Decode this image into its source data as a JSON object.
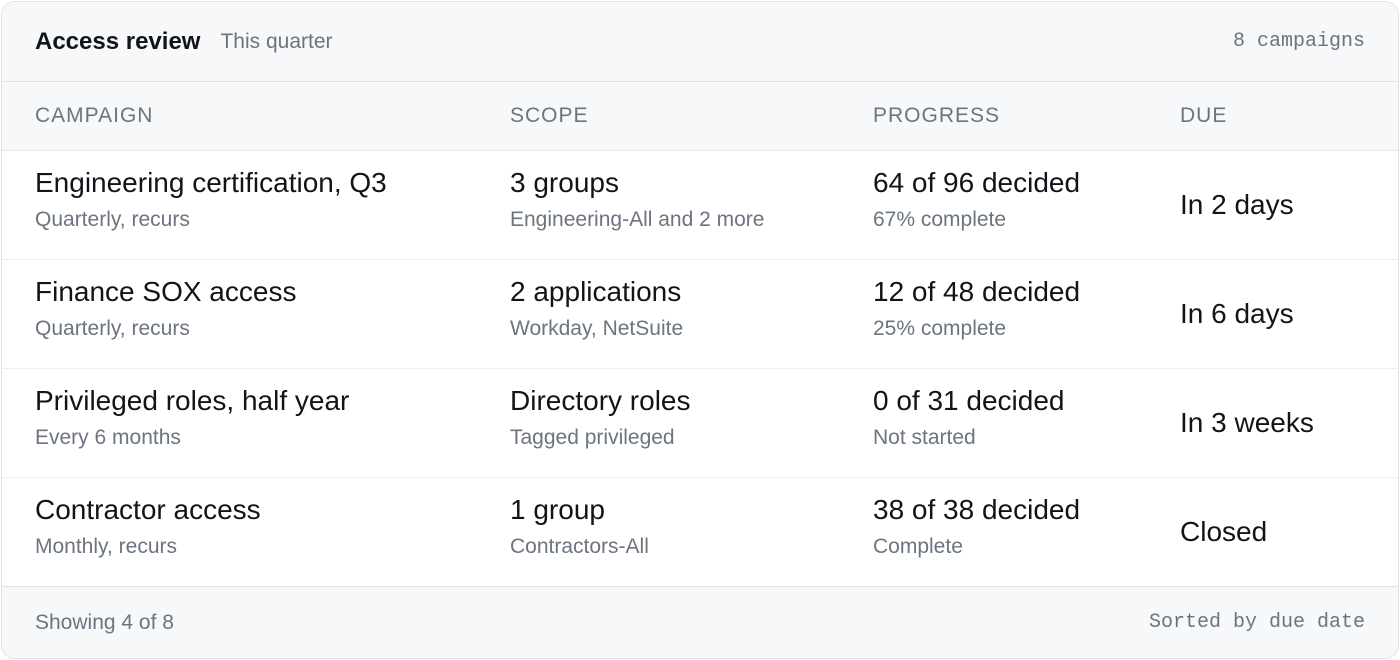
{
  "header": {
    "title": "Access review",
    "subtitle": "This quarter",
    "count": "8 campaigns"
  },
  "columns": [
    "CAMPAIGN",
    "SCOPE",
    "PROGRESS",
    "DUE"
  ],
  "rows": [
    {
      "campaign": "Engineering certification, Q3",
      "cadence": "Quarterly, recurs",
      "scope": "3 groups",
      "scope_detail": "Engineering-All and 2 more",
      "progress": "64 of 96 decided",
      "progress_detail": "67% complete",
      "due": "In 2 days"
    },
    {
      "campaign": "Finance SOX access",
      "cadence": "Quarterly, recurs",
      "scope": "2 applications",
      "scope_detail": "Workday, NetSuite",
      "progress": "12 of 48 decided",
      "progress_detail": "25% complete",
      "due": "In 6 days"
    },
    {
      "campaign": "Privileged roles, half year",
      "cadence": "Every 6 months",
      "scope": "Directory roles",
      "scope_detail": "Tagged privileged",
      "progress": "0 of 31 decided",
      "progress_detail": "Not started",
      "due": "In 3 weeks"
    },
    {
      "campaign": "Contractor access",
      "cadence": "Monthly, recurs",
      "scope": "1 group",
      "scope_detail": "Contractors-All",
      "progress": "38 of 38 decided",
      "progress_detail": "Complete",
      "due": "Closed"
    }
  ],
  "footer": {
    "showing": "Showing 4 of 8",
    "sorted": "Sorted by due date"
  }
}
